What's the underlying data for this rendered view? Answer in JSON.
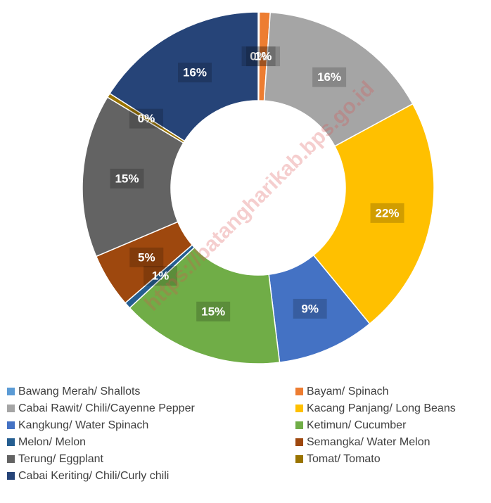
{
  "chart_data": {
    "type": "donut",
    "categories": [
      "Bawang Merah/ Shallots",
      "Bayam/ Spinach",
      "Cabai Rawit/ Chili/Cayenne Pepper",
      "Kacang Panjang/ Long Beans",
      "Kangkung/ Water Spinach",
      "Ketimun/ Cucumber",
      "Melon/ Melon",
      "Semangka/ Water Melon",
      "Terung/ Eggplant",
      "Tomat/ Tomato",
      "Cabai Keriting/ Chili/Curly chili"
    ],
    "values": [
      0.1,
      1,
      16,
      22,
      9,
      15,
      0.6,
      5,
      15,
      0.4,
      16
    ],
    "value_labels": [
      "0%",
      "1%",
      "16%",
      "22%",
      "9%",
      "15%",
      "1%",
      "5%",
      "15%",
      "0%",
      "16%"
    ],
    "colors": [
      "#5b9bd5",
      "#ed7d31",
      "#a5a5a5",
      "#ffc000",
      "#4472c4",
      "#70ad47",
      "#255e91",
      "#9e480e",
      "#636363",
      "#997300",
      "#264478"
    ],
    "watermark": "https://batangharikab.bps.go.id",
    "legend": "bottom"
  }
}
